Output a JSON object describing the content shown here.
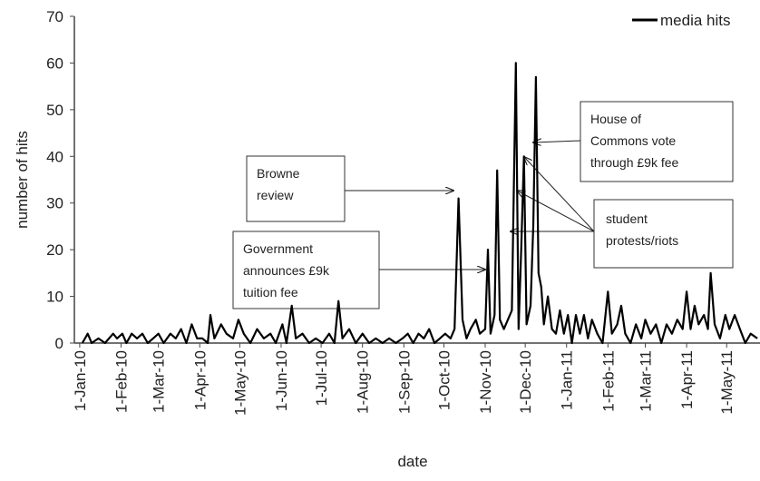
{
  "chart_data": {
    "type": "line",
    "y_label": "number  of hits",
    "x_label": "date",
    "legend": "top-right",
    "ylim": [
      0,
      70
    ],
    "yticks": [
      0,
      10,
      20,
      30,
      40,
      50,
      60,
      70
    ],
    "xlim": [
      "2009-12-28",
      "2011-05-26"
    ],
    "xticks": [
      {
        "value": "2010-01-01",
        "label": "1-Jan-10"
      },
      {
        "value": "2010-02-01",
        "label": "1-Feb-10"
      },
      {
        "value": "2010-03-01",
        "label": "1-Mar-10"
      },
      {
        "value": "2010-04-01",
        "label": "1-Apr-10"
      },
      {
        "value": "2010-05-01",
        "label": "1-May-10"
      },
      {
        "value": "2010-06-01",
        "label": "1-Jun-10"
      },
      {
        "value": "2010-07-01",
        "label": "1-Jul-10"
      },
      {
        "value": "2010-08-01",
        "label": "1-Aug-10"
      },
      {
        "value": "2010-09-01",
        "label": "1-Sep-10"
      },
      {
        "value": "2010-10-01",
        "label": "1-Oct-10"
      },
      {
        "value": "2010-11-01",
        "label": "1-Nov-10"
      },
      {
        "value": "2010-12-01",
        "label": "1-Dec-10"
      },
      {
        "value": "2011-01-01",
        "label": "1-Jan-11"
      },
      {
        "value": "2011-02-01",
        "label": "1-Feb-11"
      },
      {
        "value": "2011-03-01",
        "label": "1-Mar-11"
      },
      {
        "value": "2011-04-01",
        "label": "1-Apr-11"
      },
      {
        "value": "2011-05-01",
        "label": "1-May-11"
      }
    ],
    "x": [
      "2010-01-03",
      "2010-01-07",
      "2010-01-10",
      "2010-01-15",
      "2010-01-20",
      "2010-01-26",
      "2010-01-29",
      "2010-02-02",
      "2010-02-05",
      "2010-02-09",
      "2010-02-13",
      "2010-02-17",
      "2010-02-21",
      "2010-02-25",
      "2010-03-01",
      "2010-03-05",
      "2010-03-10",
      "2010-03-14",
      "2010-03-18",
      "2010-03-22",
      "2010-03-26",
      "2010-03-30",
      "2010-04-03",
      "2010-04-07",
      "2010-04-09",
      "2010-04-12",
      "2010-04-17",
      "2010-04-21",
      "2010-04-26",
      "2010-04-30",
      "2010-05-04",
      "2010-05-09",
      "2010-05-14",
      "2010-05-19",
      "2010-05-24",
      "2010-05-28",
      "2010-06-02",
      "2010-06-05",
      "2010-06-09",
      "2010-06-12",
      "2010-06-17",
      "2010-06-22",
      "2010-06-27",
      "2010-07-02",
      "2010-07-07",
      "2010-07-11",
      "2010-07-14",
      "2010-07-17",
      "2010-07-22",
      "2010-07-27",
      "2010-08-01",
      "2010-08-06",
      "2010-08-11",
      "2010-08-16",
      "2010-08-21",
      "2010-08-26",
      "2010-08-31",
      "2010-09-04",
      "2010-09-08",
      "2010-09-12",
      "2010-09-16",
      "2010-09-20",
      "2010-09-24",
      "2010-09-28",
      "2010-10-02",
      "2010-10-06",
      "2010-10-09",
      "2010-10-12",
      "2010-10-15",
      "2010-10-18",
      "2010-10-21",
      "2010-10-25",
      "2010-10-28",
      "2010-11-01",
      "2010-11-03",
      "2010-11-05",
      "2010-11-08",
      "2010-11-10",
      "2010-11-12",
      "2010-11-15",
      "2010-11-18",
      "2010-11-21",
      "2010-11-24",
      "2010-11-26",
      "2010-11-28",
      "2010-11-30",
      "2010-12-02",
      "2010-12-05",
      "2010-12-07",
      "2010-12-09",
      "2010-12-11",
      "2010-12-13",
      "2010-12-15",
      "2010-12-18",
      "2010-12-21",
      "2010-12-24",
      "2010-12-27",
      "2010-12-30",
      "2011-01-02",
      "2011-01-05",
      "2011-01-08",
      "2011-01-11",
      "2011-01-14",
      "2011-01-17",
      "2011-01-20",
      "2011-01-24",
      "2011-01-28",
      "2011-02-01",
      "2011-02-04",
      "2011-02-08",
      "2011-02-11",
      "2011-02-14",
      "2011-02-18",
      "2011-02-22",
      "2011-02-26",
      "2011-03-01",
      "2011-03-05",
      "2011-03-09",
      "2011-03-13",
      "2011-03-17",
      "2011-03-21",
      "2011-03-25",
      "2011-03-29",
      "2011-04-01",
      "2011-04-04",
      "2011-04-07",
      "2011-04-10",
      "2011-04-14",
      "2011-04-17",
      "2011-04-19",
      "2011-04-22",
      "2011-04-26",
      "2011-04-30",
      "2011-05-03",
      "2011-05-07",
      "2011-05-11",
      "2011-05-15",
      "2011-05-19",
      "2011-05-24"
    ],
    "series": [
      {
        "name": "media hits",
        "color": "#000000",
        "values": [
          0,
          2,
          0,
          1,
          0,
          2,
          1,
          2,
          0,
          2,
          1,
          2,
          0,
          1,
          2,
          0,
          2,
          1,
          3,
          0,
          4,
          1,
          1,
          0,
          6,
          1,
          4,
          2,
          1,
          5,
          2,
          0,
          3,
          1,
          2,
          0,
          4,
          0,
          8,
          1,
          2,
          0,
          1,
          0,
          2,
          0,
          9,
          1,
          3,
          0,
          2,
          0,
          1,
          0,
          1,
          0,
          1,
          2,
          0,
          2,
          1,
          3,
          0,
          1,
          2,
          1,
          3,
          31,
          5,
          1,
          3,
          5,
          2,
          3,
          20,
          2,
          6,
          37,
          5,
          3,
          5,
          7,
          60,
          3,
          20,
          40,
          4,
          8,
          25,
          57,
          15,
          12,
          4,
          10,
          3,
          2,
          7,
          2,
          6,
          0,
          6,
          2,
          6,
          1,
          5,
          2,
          0,
          11,
          2,
          4,
          8,
          2,
          0,
          4,
          1,
          5,
          2,
          4,
          0,
          4,
          2,
          5,
          3,
          11,
          3,
          8,
          4,
          6,
          3,
          15,
          4,
          1,
          6,
          3,
          6,
          3,
          0,
          2,
          1
        ]
      }
    ],
    "annotations": [
      {
        "lines": [
          "Browne",
          "review"
        ]
      },
      {
        "lines": [
          "Government",
          "announces £9k",
          "tuition fee"
        ]
      },
      {
        "lines": [
          "House of",
          "Commons vote",
          "through £9k fee"
        ]
      },
      {
        "lines": [
          "student",
          "protests/riots"
        ]
      }
    ]
  }
}
